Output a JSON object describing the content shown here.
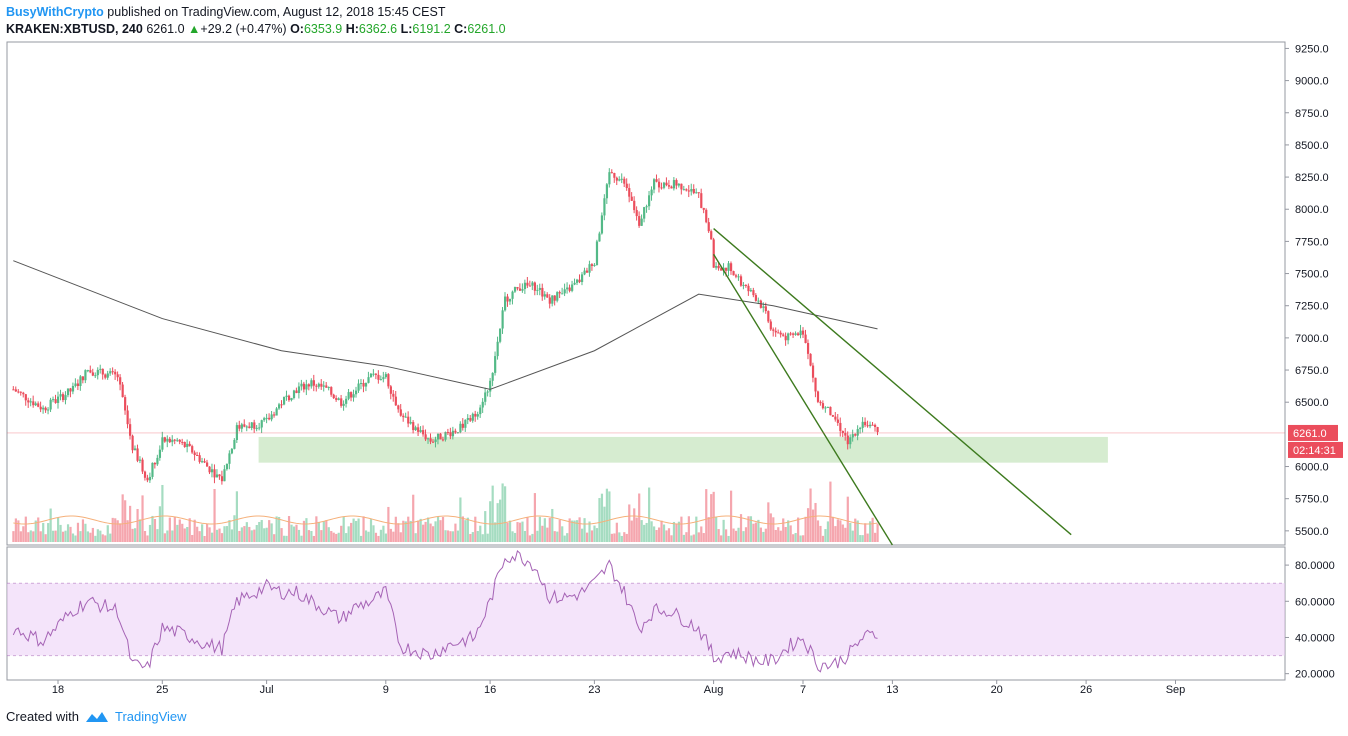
{
  "header": {
    "author": "BusyWithCrypto",
    "published": " published on TradingView.com, August 12, 2018 15:45 CEST",
    "symbol": "KRAKEN:XBTUSD, 240",
    "last": "6261.0",
    "change": "+29.2 (+0.47%)",
    "o_label": "O:",
    "o_value": "6353.9",
    "h_label": "H:",
    "h_value": "6362.6",
    "l_label": "L:",
    "l_value": "6191.2",
    "c_label": "C:",
    "c_value": "6261.0"
  },
  "footer": {
    "created_with": "Created with",
    "brand": "TradingView"
  },
  "colors": {
    "up": "#53b987",
    "down": "#eb4d5c",
    "up_vol": "#a5dcc1",
    "down_vol": "#f5a6ae",
    "ma": "#555555",
    "vol_ma": "#f5b07a",
    "trend": "#3d7a1e",
    "support_zone": "#c8e6c0",
    "rsi": "#a563b5",
    "rsi_band": "#e9c9f5",
    "price_label": "#eb4d5c"
  },
  "chart_data": [
    {
      "type": "candlestick",
      "title": "KRAKEN:XBTUSD, 240",
      "x": [
        "18",
        "25",
        "Jul",
        "9",
        "16",
        "23",
        "Aug",
        "7",
        "13",
        "20",
        "26",
        "Sep"
      ],
      "y_ticks": [
        "9250.0",
        "9000.0",
        "8750.0",
        "8500.0",
        "8250.0",
        "8000.0",
        "7750.0",
        "7500.0",
        "7250.0",
        "7000.0",
        "6750.0",
        "6500.0",
        "6000.0",
        "5750.0",
        "5500.0"
      ],
      "ylim": [
        5390,
        9300
      ],
      "last_price_label": "6261.0",
      "countdown_label": "02:14:31",
      "price_path": [
        [
          "Jun 15",
          6600
        ],
        [
          "Jun 17",
          6450
        ],
        [
          "Jun 19",
          6600
        ],
        [
          "Jun 20",
          6750
        ],
        [
          "Jun 22",
          6700
        ],
        [
          "Jun 23",
          6150
        ],
        [
          "Jun 24",
          5900
        ],
        [
          "Jun 25",
          6200
        ],
        [
          "Jun 26",
          6200
        ],
        [
          "Jun 27",
          6120
        ],
        [
          "Jun 28",
          6000
        ],
        [
          "Jun 29",
          5900
        ],
        [
          "Jun 30",
          6300
        ],
        [
          "Jul 1",
          6350
        ],
        [
          "Jul 2",
          6500
        ],
        [
          "Jul 3",
          6600
        ],
        [
          "Jul 4",
          6650
        ],
        [
          "Jul 5",
          6600
        ],
        [
          "Jul 6",
          6500
        ],
        [
          "Jul 7",
          6600
        ],
        [
          "Jul 8",
          6700
        ],
        [
          "Jul 9",
          6700
        ],
        [
          "Jul 10",
          6400
        ],
        [
          "Jul 11",
          6300
        ],
        [
          "Jul 12",
          6200
        ],
        [
          "Jul 13",
          6250
        ],
        [
          "Jul 14",
          6300
        ],
        [
          "Jul 15",
          6400
        ],
        [
          "Jul 16",
          6650
        ],
        [
          "Jul 17",
          7300
        ],
        [
          "Jul 18",
          7400
        ],
        [
          "Jul 19",
          7400
        ],
        [
          "Jul 20",
          7300
        ],
        [
          "Jul 21",
          7350
        ],
        [
          "Jul 22",
          7450
        ],
        [
          "Jul 23",
          7600
        ],
        [
          "Jul 24",
          8300
        ],
        [
          "Jul 25",
          8200
        ],
        [
          "Jul 26",
          7900
        ],
        [
          "Jul 27",
          8200
        ],
        [
          "Jul 28",
          8200
        ],
        [
          "Jul 29",
          8180
        ],
        [
          "Jul 30",
          8100
        ],
        [
          "Jul 31",
          7700
        ],
        [
          "Aug 1",
          7550
        ],
        [
          "Aug 2",
          7550
        ],
        [
          "Aug 3",
          7400
        ],
        [
          "Aug 4",
          7300
        ],
        [
          "Aug 5",
          7050
        ],
        [
          "Aug 6",
          7000
        ],
        [
          "Aug 7",
          7050
        ],
        [
          "Aug 8",
          6500
        ],
        [
          "Aug 9",
          6400
        ],
        [
          "Aug 10",
          6200
        ],
        [
          "Aug 11",
          6350
        ],
        [
          "Aug 12",
          6261
        ]
      ],
      "ma_path": [
        [
          "Jun 15",
          7600
        ],
        [
          "Jun 25",
          7150
        ],
        [
          "Jul 2",
          6900
        ],
        [
          "Jul 9",
          6780
        ],
        [
          "Jul 16",
          6600
        ],
        [
          "Jul 23",
          6900
        ],
        [
          "Jul 30",
          7340
        ],
        [
          "Aug 5",
          7250
        ],
        [
          "Aug 12",
          7070
        ]
      ],
      "support_zone": {
        "from": "Jul 1",
        "to": "Aug 28",
        "low": 6030,
        "high": 6230
      },
      "trendlines": [
        {
          "from": [
            "Jul 31",
            7850
          ],
          "to": [
            "Aug 25",
            5470
          ]
        },
        {
          "from": [
            "Jul 31",
            7650
          ],
          "to": [
            "Aug 13",
            5390
          ]
        }
      ]
    },
    {
      "type": "line",
      "title": "RSI",
      "y_ticks": [
        "80.0000",
        "60.0000",
        "40.0000",
        "20.0000"
      ],
      "ylim": [
        16.5,
        90
      ],
      "band": [
        30,
        70
      ],
      "series": [
        {
          "name": "",
          "values": [
            [
              "Jun 15",
              45
            ],
            [
              "Jun 17",
              38
            ],
            [
              "Jun 19",
              55
            ],
            [
              "Jun 20",
              60
            ],
            [
              "Jun 22",
              55
            ],
            [
              "Jun 23",
              25
            ],
            [
              "Jun 24",
              23
            ],
            [
              "Jun 25",
              45
            ],
            [
              "Jun 26",
              43
            ],
            [
              "Jun 27",
              40
            ],
            [
              "Jun 28",
              36
            ],
            [
              "Jun 29",
              34
            ],
            [
              "Jun 30",
              60
            ],
            [
              "Jul 1",
              68
            ],
            [
              "Jul 2",
              65
            ],
            [
              "Jul 3",
              65
            ],
            [
              "Jul 4",
              60
            ],
            [
              "Jul 5",
              55
            ],
            [
              "Jul 6",
              50
            ],
            [
              "Jul 7",
              57
            ],
            [
              "Jul 8",
              60
            ],
            [
              "Jul 9",
              65
            ],
            [
              "Jul 10",
              35
            ],
            [
              "Jul 11",
              33
            ],
            [
              "Jul 12",
              30
            ],
            [
              "Jul 13",
              35
            ],
            [
              "Jul 14",
              38
            ],
            [
              "Jul 15",
              40
            ],
            [
              "Jul 16",
              60
            ],
            [
              "Jul 17",
              85
            ],
            [
              "Jul 18",
              85
            ],
            [
              "Jul 19",
              80
            ],
            [
              "Jul 20",
              62
            ],
            [
              "Jul 21",
              62
            ],
            [
              "Jul 22",
              64
            ],
            [
              "Jul 23",
              70
            ],
            [
              "Jul 24",
              80
            ],
            [
              "Jul 25",
              65
            ],
            [
              "Jul 26",
              45
            ],
            [
              "Jul 27",
              55
            ],
            [
              "Jul 28",
              55
            ],
            [
              "Jul 29",
              50
            ],
            [
              "Jul 30",
              45
            ],
            [
              "Jul 31",
              30
            ],
            [
              "Aug 1",
              28
            ],
            [
              "Aug 2",
              32
            ],
            [
              "Aug 3",
              30
            ],
            [
              "Aug 4",
              27
            ],
            [
              "Aug 5",
              27
            ],
            [
              "Aug 6",
              35
            ],
            [
              "Aug 7",
              40
            ],
            [
              "Aug 8",
              25
            ],
            [
              "Aug 9",
              25
            ],
            [
              "Aug 10",
              30
            ],
            [
              "Aug 11",
              40
            ],
            [
              "Aug 12",
              42
            ]
          ]
        }
      ]
    }
  ]
}
